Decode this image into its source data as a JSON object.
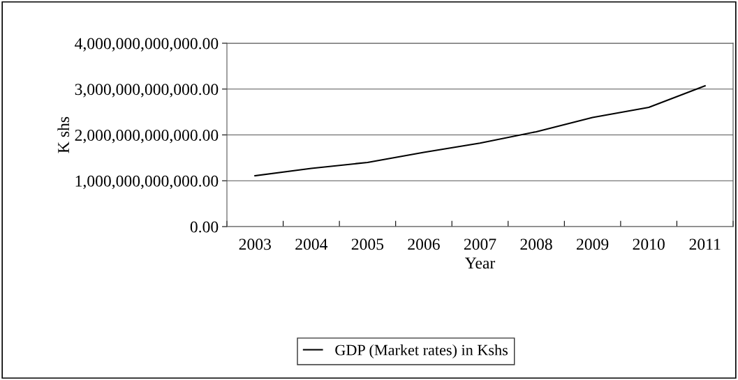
{
  "chart_data": {
    "type": "line",
    "xlabel": "Year",
    "ylabel": "K shs",
    "categories": [
      "2003",
      "2004",
      "2005",
      "2006",
      "2007",
      "2008",
      "2009",
      "2010",
      "2011"
    ],
    "series": [
      {
        "name": "GDP (Market rates) in Kshs",
        "color": "#000000",
        "values": [
          1110000000000.0,
          1270000000000.0,
          1400000000000.0,
          1620000000000.0,
          1820000000000.0,
          2070000000000.0,
          2380000000000.0,
          2600000000000.0,
          3070000000000.0
        ]
      }
    ],
    "ylim": [
      0,
      4000000000000
    ],
    "yticks": [
      {
        "value": 0,
        "label": "0.00"
      },
      {
        "value": 1000000000000,
        "label": "1,000,000,000,000.00"
      },
      {
        "value": 2000000000000,
        "label": "2,000,000,000,000.00"
      },
      {
        "value": 3000000000000,
        "label": "3,000,000,000,000.00"
      },
      {
        "value": 4000000000000,
        "label": "4,000,000,000,000.00"
      }
    ],
    "grid": "y",
    "legend": "bottom",
    "marker": "none",
    "line_style": "solid"
  }
}
